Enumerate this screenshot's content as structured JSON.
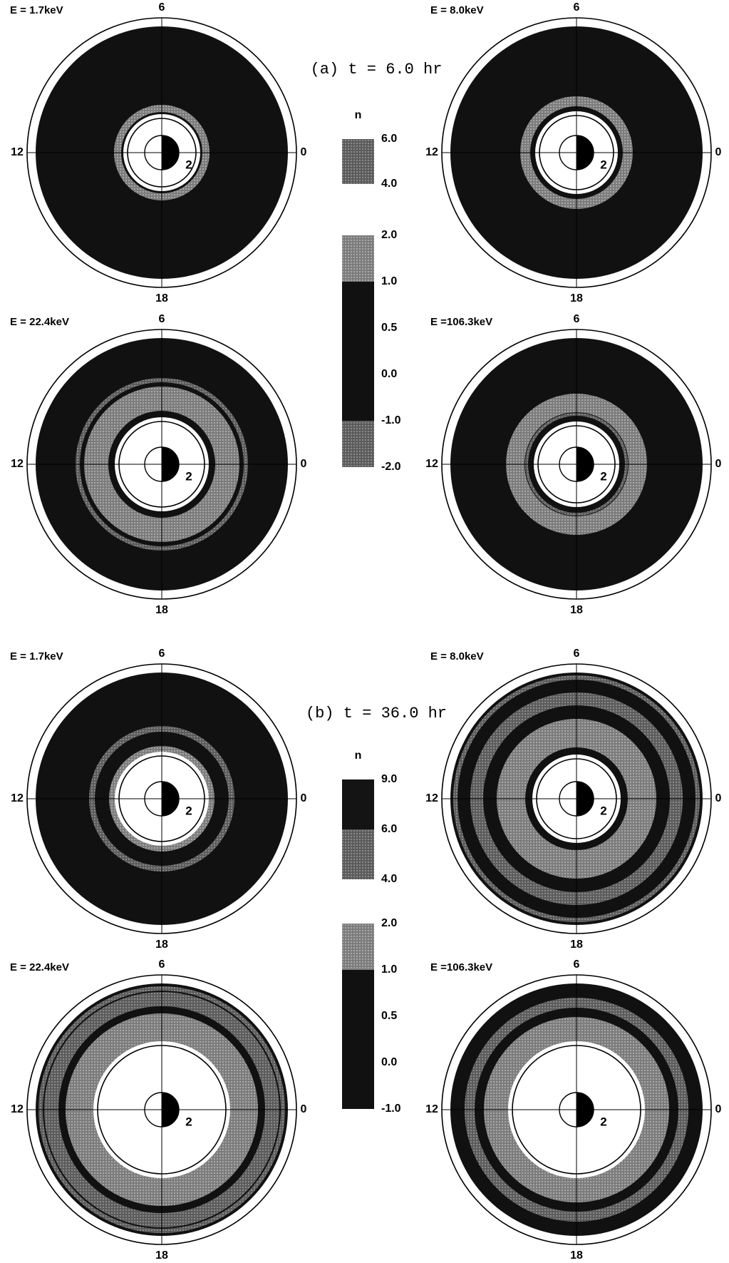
{
  "chart_data": [
    {
      "type": "heatmap",
      "panel_title": "(a) t =  6.0 hr",
      "colorbar": {
        "title": "n",
        "upper_ticks": [
          "6.0",
          "4.0"
        ],
        "lower_ticks": [
          "2.0",
          "1.0",
          "0.5",
          "0.0",
          "-1.0",
          "-2.0"
        ]
      },
      "plots": [
        {
          "energy_label": "E = 1.7keV",
          "mlt_labels": {
            "top": "6",
            "left": "12",
            "right": "0",
            "bottom": "18"
          },
          "ring_label": "2"
        },
        {
          "energy_label": "E = 8.0keV",
          "mlt_labels": {
            "top": "6",
            "left": "12",
            "right": "0",
            "bottom": "18"
          },
          "ring_label": "2"
        },
        {
          "energy_label": "E = 22.4keV",
          "mlt_labels": {
            "top": "6",
            "left": "12",
            "right": "0",
            "bottom": "18"
          },
          "ring_label": "2"
        },
        {
          "energy_label": "E =106.3keV",
          "mlt_labels": {
            "top": "6",
            "left": "12",
            "right": "0",
            "bottom": "18"
          },
          "ring_label": "2"
        }
      ]
    },
    {
      "type": "heatmap",
      "panel_title": "(b) t = 36.0 hr",
      "colorbar": {
        "title": "n",
        "upper_ticks": [
          "9.0",
          "6.0",
          "4.0"
        ],
        "lower_ticks": [
          "2.0",
          "1.0",
          "0.5",
          "0.0",
          "-1.0"
        ]
      },
      "plots": [
        {
          "energy_label": "E = 1.7keV",
          "mlt_labels": {
            "top": "6",
            "left": "12",
            "right": "0",
            "bottom": "18"
          },
          "ring_label": "2"
        },
        {
          "energy_label": "E = 8.0keV",
          "mlt_labels": {
            "top": "6",
            "left": "12",
            "right": "0",
            "bottom": "18"
          },
          "ring_label": "2"
        },
        {
          "energy_label": "E = 22.4keV",
          "mlt_labels": {
            "top": "6",
            "left": "12",
            "right": "0",
            "bottom": "18"
          },
          "ring_label": "2"
        },
        {
          "energy_label": "E =106.3keV",
          "mlt_labels": {
            "top": "6",
            "left": "12",
            "right": "0",
            "bottom": "18"
          },
          "ring_label": "2"
        }
      ]
    }
  ]
}
